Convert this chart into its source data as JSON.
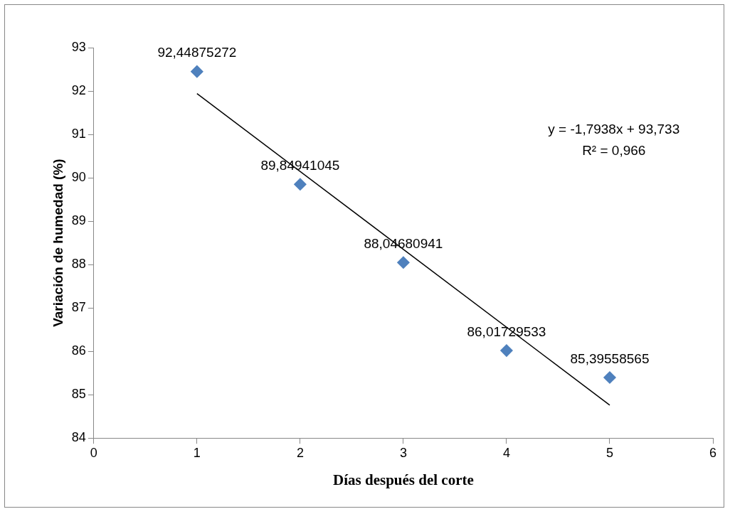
{
  "chart_data": {
    "type": "scatter",
    "xlabel": "Días después del corte",
    "ylabel": "Variación de humedad (%)",
    "xlim": [
      0,
      6
    ],
    "xticks": [
      0,
      1,
      2,
      3,
      4,
      5,
      6
    ],
    "ylim": [
      84,
      93
    ],
    "yticks": [
      84,
      85,
      86,
      87,
      88,
      89,
      90,
      91,
      92,
      93
    ],
    "grid": false,
    "legend": false,
    "marker": "diamond",
    "series": [
      {
        "color": "#4f81bd",
        "x": [
          1,
          2,
          3,
          4,
          5
        ],
        "values": [
          92.44875272,
          89.84941045,
          88.04680941,
          86.01729533,
          85.39558565
        ],
        "value_labels": [
          "92,44875272",
          "89,84941045",
          "88,04680941",
          "86,01729533",
          "85,39558565"
        ]
      },
      {
        "type": "line",
        "color": "#000000",
        "marker": "none",
        "x": [
          1,
          5
        ],
        "values": [
          91.94,
          84.76
        ]
      }
    ],
    "annotations": [
      "y = -1,7938x + 93,733",
      "R² = 0,966"
    ]
  }
}
